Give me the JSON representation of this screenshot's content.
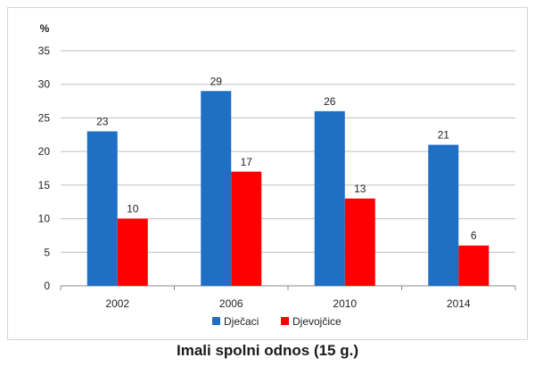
{
  "chart_data": {
    "type": "bar",
    "title": "Imali spolni odnos (15 g.)",
    "y_unit": "%",
    "categories": [
      "2002",
      "2006",
      "2010",
      "2014"
    ],
    "series": [
      {
        "name": "Dječaci",
        "color": "#1F6FC5",
        "values": [
          23,
          29,
          26,
          21
        ]
      },
      {
        "name": "Djevojčice",
        "color": "#FF0000",
        "values": [
          10,
          17,
          13,
          6
        ]
      }
    ],
    "ylim": [
      0,
      35
    ],
    "yticks": [
      0,
      5,
      10,
      15,
      20,
      25,
      30,
      35
    ],
    "grid": true,
    "legend_position": "bottom"
  }
}
